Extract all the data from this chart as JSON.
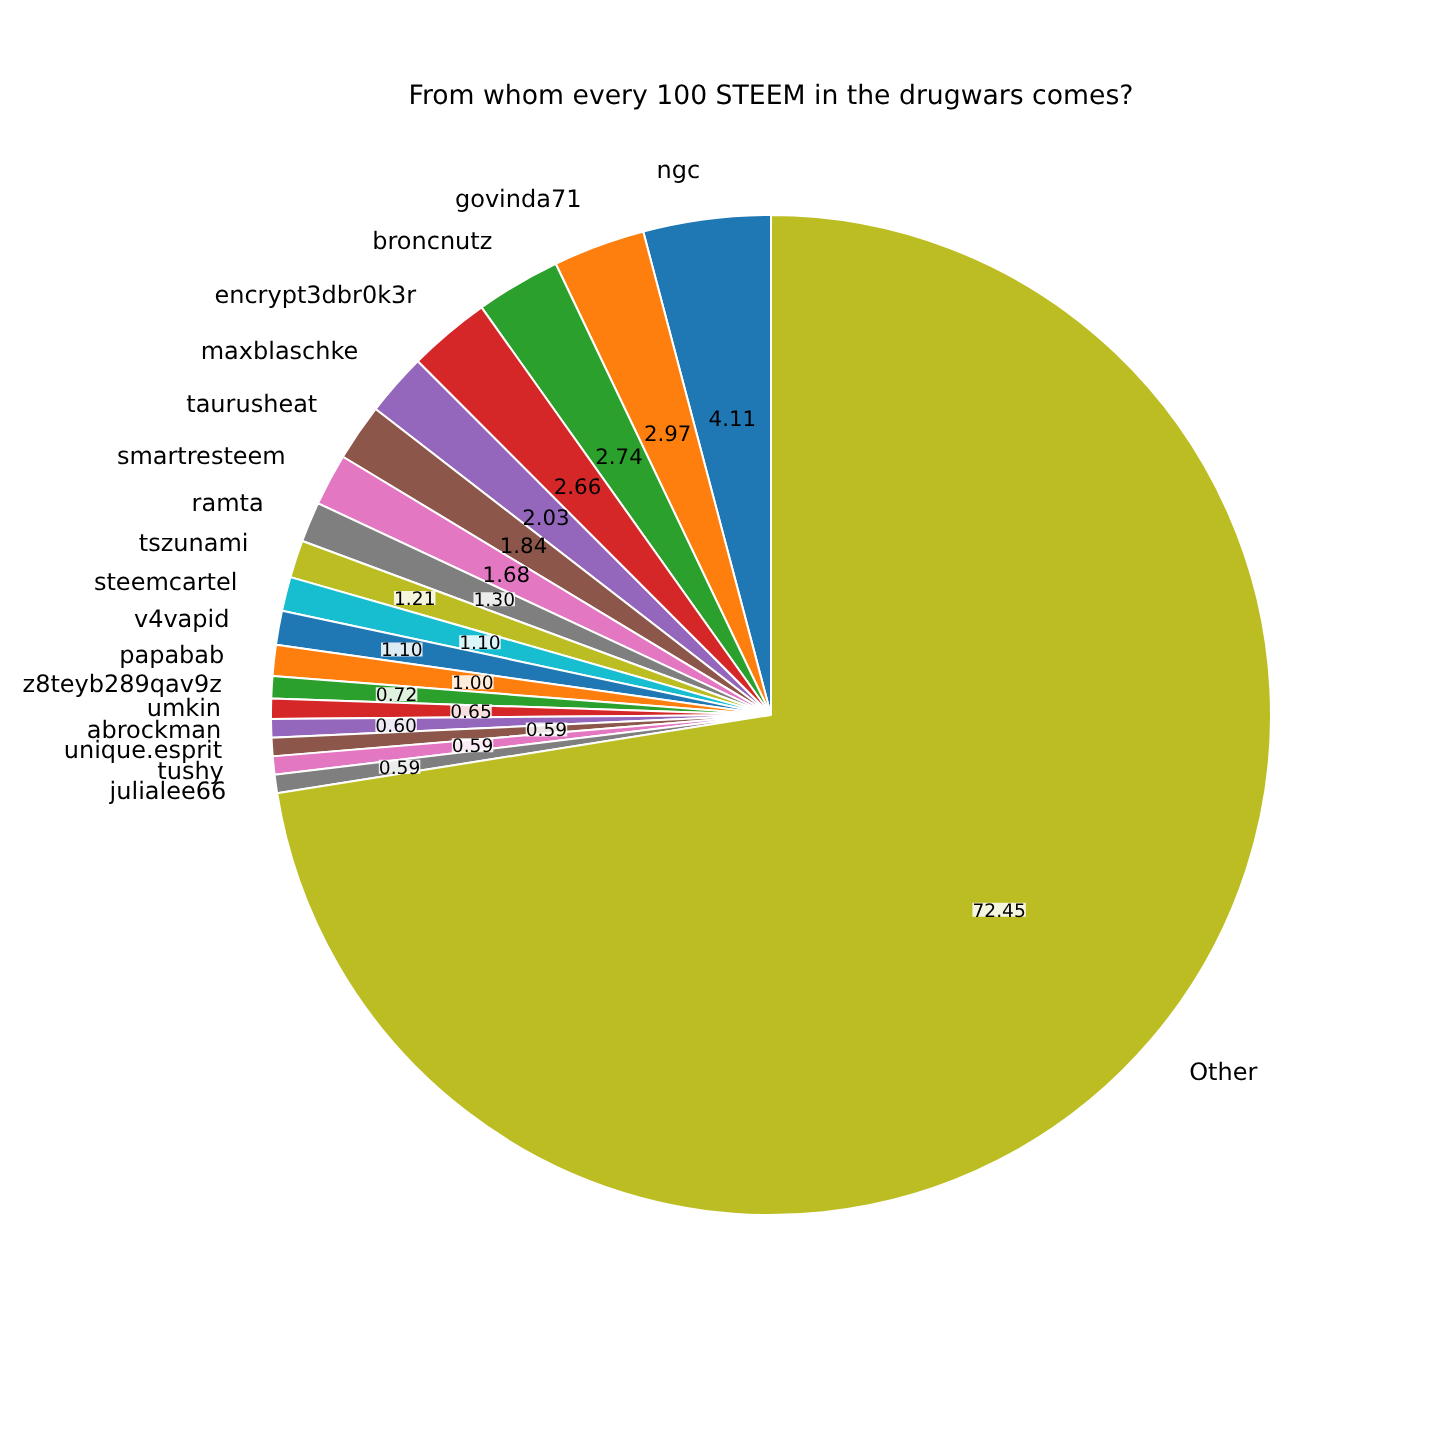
{
  "chart_data": {
    "type": "pie",
    "title": "From whom every 100 STEEM in the drugwars comes?",
    "categories": [
      "ngc",
      "govinda71",
      "broncnutz",
      "encrypt3dbr0k3r",
      "maxblaschke",
      "taurusheat",
      "smartresteem",
      "ramta",
      "tszunami",
      "steemcartel",
      "v4vapid",
      "papabab",
      "z8teyb289qav9z",
      "umkin",
      "abrockman",
      "unique.esprit",
      "tushy",
      "julialee66",
      "Other"
    ],
    "values": [
      4.11,
      2.97,
      2.74,
      2.66,
      2.03,
      1.84,
      1.68,
      1.3,
      1.21,
      1.1,
      1.1,
      1.0,
      0.72,
      0.65,
      0.6,
      0.59,
      0.59,
      0.59,
      72.45
    ],
    "colors": [
      "#1f77b4",
      "#ff7f0e",
      "#2ca02c",
      "#d62728",
      "#9467bd",
      "#8c564b",
      "#e377c2",
      "#7f7f7f",
      "#bcbd22",
      "#17becf",
      "#1f77b4",
      "#ff7f0e",
      "#2ca02c",
      "#d62728",
      "#9467bd",
      "#8c564b",
      "#e377c2",
      "#7f7f7f",
      "#bcbd22"
    ],
    "value_labels": [
      "4.11",
      "2.97",
      "2.74",
      "2.66",
      "2.03",
      "1.84",
      "1.68",
      "1.30",
      "1.21",
      "1.10",
      "1.10",
      "1.00",
      "0.72",
      "0.65",
      "0.60",
      "0.59",
      "0.59",
      "0.59",
      "72.45"
    ]
  }
}
